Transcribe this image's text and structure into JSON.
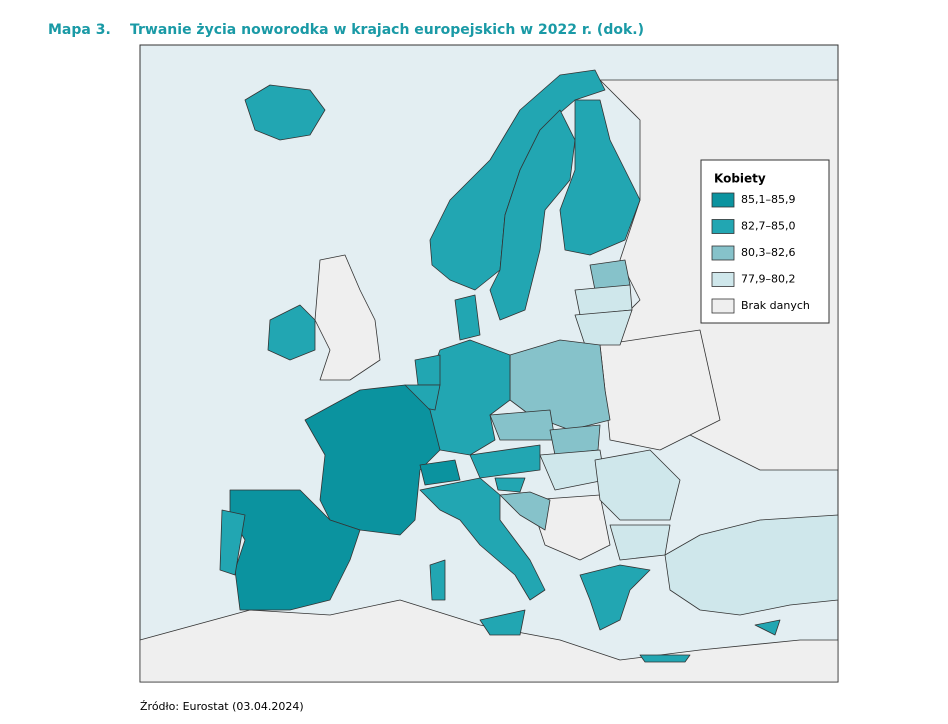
{
  "header": {
    "label": "Mapa 3.",
    "title": "Trwanie życia noworodka w krajach europejskich w 2022 r. (dok.)"
  },
  "legend": {
    "title": "Kobiety",
    "items": [
      {
        "label": "85,1–85,9",
        "color": "#0b939f"
      },
      {
        "label": "82,7–85,0",
        "color": "#22a6b2"
      },
      {
        "label": "80,3–82,6",
        "color": "#86c2ca"
      },
      {
        "label": "77,9–80,2",
        "color": "#cfe7eb"
      },
      {
        "label": "Brak danych",
        "color": "#efefef"
      }
    ]
  },
  "source": "Źródło: Eurostat (03.04.2024)"
}
